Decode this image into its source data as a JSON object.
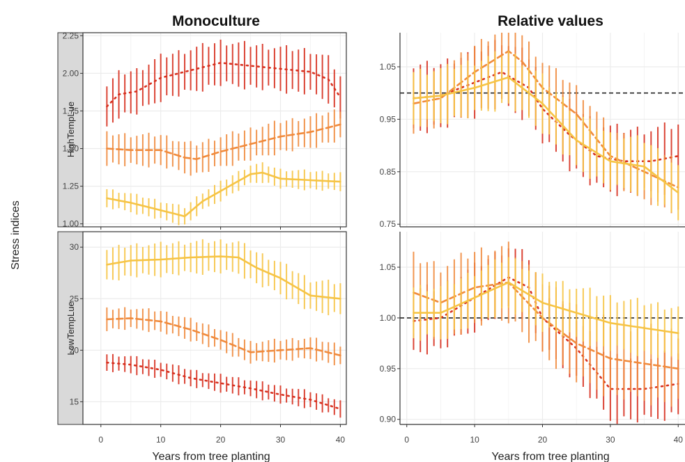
{
  "colors": {
    "dark": "#d7301f",
    "mid": "#f08a3c",
    "light": "#f6c445",
    "hline": "#222222",
    "grid": "#ececec",
    "strip": "#d9d9d9"
  },
  "labels": {
    "left_title": "Monoculture",
    "right_title": "Relative values",
    "ylabel": "Stress indices",
    "xlabel_left": "Years from tree planting",
    "xlabel_right": "Years from tree planting",
    "strip_top": "HighTempLue",
    "strip_bottom": "LowTempLue"
  },
  "chart_data": [
    {
      "type": "line",
      "panel": "Monoculture / HighTempLue",
      "title": "Monoculture",
      "xlabel": "Years from tree planting",
      "ylabel": "Stress indices",
      "strip": "HighTempLue",
      "xlim": [
        -3,
        41
      ],
      "ylim": [
        0.98,
        2.27
      ],
      "x_ticks": [
        0,
        10,
        20,
        30,
        40
      ],
      "y_ticks": [
        1.0,
        1.25,
        1.5,
        1.75,
        2.0,
        2.25
      ],
      "y_tick_labels": [
        "1.00",
        "1.25",
        "1.50",
        "1.75",
        "2.00",
        "2.25"
      ],
      "grid": true,
      "series": [
        {
          "color": "dark",
          "linestyle": "dotted",
          "err": 0.14,
          "knots": [
            [
              1,
              1.78
            ],
            [
              3,
              1.86
            ],
            [
              6,
              1.88
            ],
            [
              10,
              1.97
            ],
            [
              15,
              2.02
            ],
            [
              20,
              2.07
            ],
            [
              25,
              2.05
            ],
            [
              30,
              2.03
            ],
            [
              35,
              2.01
            ],
            [
              38,
              1.96
            ],
            [
              40,
              1.84
            ]
          ]
        },
        {
          "color": "mid",
          "linestyle": "dashed",
          "err": 0.1,
          "knots": [
            [
              1,
              1.5
            ],
            [
              5,
              1.49
            ],
            [
              10,
              1.49
            ],
            [
              14,
              1.44
            ],
            [
              16,
              1.43
            ],
            [
              20,
              1.48
            ],
            [
              25,
              1.53
            ],
            [
              30,
              1.58
            ],
            [
              35,
              1.61
            ],
            [
              40,
              1.66
            ]
          ]
        },
        {
          "color": "light",
          "linestyle": "solid",
          "err": 0.06,
          "knots": [
            [
              1,
              1.17
            ],
            [
              5,
              1.14
            ],
            [
              10,
              1.09
            ],
            [
              14,
              1.05
            ],
            [
              17,
              1.15
            ],
            [
              21,
              1.24
            ],
            [
              25,
              1.33
            ],
            [
              27,
              1.34
            ],
            [
              30,
              1.3
            ],
            [
              35,
              1.29
            ],
            [
              40,
              1.28
            ]
          ]
        }
      ]
    },
    {
      "type": "line",
      "panel": "Monoculture / LowTempLue",
      "xlabel": "Years from tree planting",
      "strip": "LowTempLue",
      "xlim": [
        -3,
        41
      ],
      "ylim": [
        12.8,
        31.5
      ],
      "x_ticks": [
        0,
        10,
        20,
        30,
        40
      ],
      "y_ticks": [
        15,
        20,
        25,
        30
      ],
      "y_tick_labels": [
        "15",
        "20",
        "25",
        "30"
      ],
      "grid": true,
      "series": [
        {
          "color": "light",
          "linestyle": "solid",
          "err": 1.5,
          "knots": [
            [
              1,
              28.3
            ],
            [
              5,
              28.7
            ],
            [
              10,
              28.8
            ],
            [
              15,
              29.0
            ],
            [
              20,
              29.1
            ],
            [
              23,
              29.0
            ],
            [
              26,
              28.0
            ],
            [
              30,
              27.0
            ],
            [
              35,
              25.3
            ],
            [
              40,
              25.0
            ]
          ]
        },
        {
          "color": "mid",
          "linestyle": "dashed",
          "err": 1.0,
          "knots": [
            [
              1,
              23.0
            ],
            [
              5,
              23.1
            ],
            [
              10,
              22.8
            ],
            [
              15,
              22.0
            ],
            [
              20,
              21.0
            ],
            [
              25,
              19.8
            ],
            [
              30,
              20.0
            ],
            [
              35,
              20.2
            ],
            [
              40,
              19.5
            ]
          ]
        },
        {
          "color": "dark",
          "linestyle": "dotted",
          "err": 0.8,
          "knots": [
            [
              1,
              18.8
            ],
            [
              5,
              18.6
            ],
            [
              10,
              18.1
            ],
            [
              15,
              17.3
            ],
            [
              20,
              16.8
            ],
            [
              25,
              16.3
            ],
            [
              30,
              15.7
            ],
            [
              35,
              15.2
            ],
            [
              40,
              14.3
            ]
          ]
        }
      ]
    },
    {
      "type": "line",
      "panel": "Relative values / HighTempLue",
      "title": "Relative values",
      "xlim": [
        -1,
        41
      ],
      "ylim": [
        0.745,
        1.115
      ],
      "x_ticks": [
        0,
        10,
        20,
        30,
        40
      ],
      "y_ticks": [
        0.75,
        0.85,
        0.95,
        1.05
      ],
      "y_tick_labels": [
        "0.75",
        "0.85",
        "0.95",
        "1.05"
      ],
      "hline": 1.0,
      "grid": true,
      "series": [
        {
          "color": "dark",
          "linestyle": "dotted",
          "err": 0.06,
          "knots": [
            [
              1,
              0.99
            ],
            [
              5,
              0.995
            ],
            [
              10,
              1.02
            ],
            [
              14,
              1.04
            ],
            [
              18,
              1.01
            ],
            [
              20,
              0.97
            ],
            [
              24,
              0.92
            ],
            [
              28,
              0.88
            ],
            [
              32,
              0.87
            ],
            [
              36,
              0.87
            ],
            [
              40,
              0.88
            ]
          ]
        },
        {
          "color": "mid",
          "linestyle": "dashed",
          "err": 0.05,
          "knots": [
            [
              1,
              0.98
            ],
            [
              5,
              0.99
            ],
            [
              10,
              1.04
            ],
            [
              15,
              1.08
            ],
            [
              17,
              1.06
            ],
            [
              20,
              1.01
            ],
            [
              25,
              0.96
            ],
            [
              30,
              0.88
            ],
            [
              35,
              0.85
            ],
            [
              40,
              0.82
            ]
          ]
        },
        {
          "color": "light",
          "linestyle": "solid",
          "err": 0.05,
          "knots": [
            [
              1,
              0.99
            ],
            [
              5,
              0.995
            ],
            [
              10,
              1.01
            ],
            [
              15,
              1.03
            ],
            [
              20,
              0.98
            ],
            [
              25,
              0.91
            ],
            [
              30,
              0.87
            ],
            [
              35,
              0.86
            ],
            [
              38,
              0.83
            ],
            [
              40,
              0.81
            ]
          ]
        }
      ]
    },
    {
      "type": "line",
      "panel": "Relative values / LowTempLue",
      "xlim": [
        -1,
        41
      ],
      "ylim": [
        0.895,
        1.085
      ],
      "x_ticks": [
        0,
        10,
        20,
        30,
        40
      ],
      "x_tick_labels": [
        "0",
        "10",
        "20",
        "30",
        "40"
      ],
      "y_ticks": [
        0.9,
        0.95,
        1.0,
        1.05
      ],
      "y_tick_labels": [
        "0.90",
        "0.95",
        "1.00",
        "1.05"
      ],
      "hline": 1.0,
      "grid": true,
      "series": [
        {
          "color": "dark",
          "linestyle": "dotted",
          "err": 0.03,
          "knots": [
            [
              1,
              0.997
            ],
            [
              5,
              1.0
            ],
            [
              10,
              1.02
            ],
            [
              15,
              1.04
            ],
            [
              18,
              1.03
            ],
            [
              20,
              1.0
            ],
            [
              25,
              0.97
            ],
            [
              30,
              0.93
            ],
            [
              35,
              0.93
            ],
            [
              40,
              0.935
            ]
          ]
        },
        {
          "color": "mid",
          "linestyle": "dashed",
          "err": 0.035,
          "knots": [
            [
              1,
              1.025
            ],
            [
              3,
              1.02
            ],
            [
              5,
              1.015
            ],
            [
              10,
              1.03
            ],
            [
              15,
              1.035
            ],
            [
              20,
              1.0
            ],
            [
              25,
              0.975
            ],
            [
              30,
              0.96
            ],
            [
              35,
              0.955
            ],
            [
              40,
              0.95
            ]
          ]
        },
        {
          "color": "light",
          "linestyle": "solid",
          "err": 0.025,
          "knots": [
            [
              1,
              1.005
            ],
            [
              5,
              1.005
            ],
            [
              10,
              1.02
            ],
            [
              15,
              1.035
            ],
            [
              20,
              1.015
            ],
            [
              25,
              1.005
            ],
            [
              30,
              0.995
            ],
            [
              35,
              0.99
            ],
            [
              40,
              0.985
            ]
          ]
        }
      ]
    }
  ]
}
